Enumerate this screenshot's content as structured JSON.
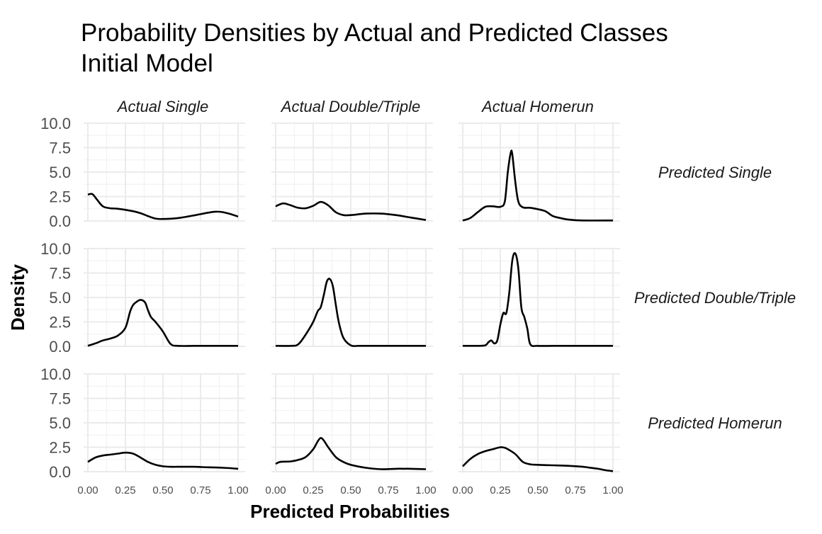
{
  "chart_data": {
    "type": "line",
    "title": "Probability Densities by Actual and Predicted Classes",
    "subtitle": "Initial Model",
    "xlabel": "Predicted Probabilities",
    "ylabel": "Density",
    "xlim": [
      0,
      1
    ],
    "ylim": [
      0,
      10
    ],
    "x_ticks": [
      "0.00",
      "0.25",
      "0.50",
      "0.75",
      "1.00"
    ],
    "y_ticks": [
      "0.0",
      "2.5",
      "5.0",
      "7.5",
      "10.0"
    ],
    "grid": true,
    "columns": [
      "Actual Single",
      "Actual Double/Triple",
      "Actual Homerun"
    ],
    "rows": [
      "Predicted Single",
      "Predicted Double/Triple",
      "Predicted Homerun"
    ],
    "panels": [
      {
        "row": "Predicted Single",
        "col": "Actual Single",
        "x": [
          0.0,
          0.03,
          0.06,
          0.1,
          0.15,
          0.2,
          0.3,
          0.35,
          0.4,
          0.45,
          0.5,
          0.6,
          0.7,
          0.8,
          0.85,
          0.9,
          0.95,
          1.0
        ],
        "y": [
          2.7,
          2.75,
          2.2,
          1.5,
          1.3,
          1.25,
          1.0,
          0.8,
          0.5,
          0.25,
          0.2,
          0.3,
          0.55,
          0.85,
          0.95,
          0.9,
          0.7,
          0.45
        ]
      },
      {
        "row": "Predicted Single",
        "col": "Actual Double/Triple",
        "x": [
          0.0,
          0.05,
          0.1,
          0.15,
          0.2,
          0.25,
          0.3,
          0.35,
          0.4,
          0.45,
          0.5,
          0.6,
          0.7,
          0.8,
          0.9,
          1.0
        ],
        "y": [
          1.5,
          1.8,
          1.6,
          1.35,
          1.3,
          1.55,
          1.95,
          1.6,
          0.9,
          0.6,
          0.6,
          0.75,
          0.75,
          0.6,
          0.35,
          0.1
        ]
      },
      {
        "row": "Predicted Single",
        "col": "Actual Homerun",
        "x": [
          0.0,
          0.05,
          0.1,
          0.15,
          0.2,
          0.25,
          0.28,
          0.3,
          0.32,
          0.33,
          0.35,
          0.37,
          0.4,
          0.45,
          0.5,
          0.55,
          0.6,
          0.65,
          0.7,
          0.8,
          1.0
        ],
        "y": [
          0.05,
          0.3,
          0.9,
          1.45,
          1.5,
          1.45,
          2.0,
          5.0,
          7.0,
          6.8,
          4.0,
          2.0,
          1.4,
          1.35,
          1.2,
          1.0,
          0.5,
          0.3,
          0.15,
          0.05,
          0.05
        ]
      },
      {
        "row": "Predicted Double/Triple",
        "col": "Actual Single",
        "x": [
          0.0,
          0.05,
          0.1,
          0.15,
          0.2,
          0.25,
          0.28,
          0.3,
          0.32,
          0.35,
          0.38,
          0.4,
          0.42,
          0.45,
          0.5,
          0.55,
          0.6,
          0.7,
          0.8,
          0.9,
          1.0
        ],
        "y": [
          0.05,
          0.3,
          0.6,
          0.8,
          1.1,
          1.9,
          3.5,
          4.2,
          4.5,
          4.75,
          4.5,
          3.7,
          3.0,
          2.5,
          1.5,
          0.25,
          0.05,
          0.05,
          0.05,
          0.05,
          0.05
        ]
      },
      {
        "row": "Predicted Double/Triple",
        "col": "Actual Double/Triple",
        "x": [
          0.0,
          0.1,
          0.15,
          0.2,
          0.25,
          0.28,
          0.3,
          0.32,
          0.34,
          0.36,
          0.38,
          0.4,
          0.42,
          0.45,
          0.5,
          0.55,
          0.6,
          0.7,
          0.8,
          0.9,
          1.0
        ],
        "y": [
          0.05,
          0.05,
          0.2,
          1.2,
          2.5,
          3.6,
          4.0,
          5.2,
          6.6,
          6.9,
          6.2,
          4.3,
          2.5,
          0.9,
          0.1,
          0.05,
          0.05,
          0.05,
          0.05,
          0.05,
          0.05
        ]
      },
      {
        "row": "Predicted Double/Triple",
        "col": "Actual Homerun",
        "x": [
          0.0,
          0.1,
          0.15,
          0.17,
          0.19,
          0.21,
          0.23,
          0.25,
          0.27,
          0.29,
          0.31,
          0.33,
          0.35,
          0.37,
          0.39,
          0.41,
          0.43,
          0.45,
          0.5,
          0.6,
          0.7,
          0.8,
          0.9,
          1.0
        ],
        "y": [
          0.05,
          0.05,
          0.1,
          0.4,
          0.6,
          0.3,
          0.6,
          2.2,
          3.4,
          3.4,
          5.5,
          8.8,
          9.5,
          8.0,
          4.0,
          3.0,
          1.8,
          0.2,
          0.05,
          0.05,
          0.05,
          0.05,
          0.05,
          0.05
        ]
      },
      {
        "row": "Predicted Homerun",
        "col": "Actual Single",
        "x": [
          0.0,
          0.05,
          0.1,
          0.15,
          0.2,
          0.25,
          0.3,
          0.35,
          0.4,
          0.45,
          0.5,
          0.55,
          0.6,
          0.7,
          0.8,
          0.9,
          1.0
        ],
        "y": [
          1.0,
          1.45,
          1.65,
          1.75,
          1.85,
          1.95,
          1.85,
          1.45,
          1.0,
          0.7,
          0.55,
          0.5,
          0.5,
          0.5,
          0.45,
          0.4,
          0.3
        ]
      },
      {
        "row": "Predicted Homerun",
        "col": "Actual Double/Triple",
        "x": [
          0.0,
          0.03,
          0.1,
          0.15,
          0.2,
          0.25,
          0.28,
          0.3,
          0.32,
          0.35,
          0.4,
          0.45,
          0.5,
          0.6,
          0.7,
          0.8,
          0.85,
          0.9,
          1.0
        ],
        "y": [
          0.8,
          1.0,
          1.05,
          1.2,
          1.5,
          2.3,
          3.1,
          3.45,
          3.2,
          2.5,
          1.5,
          1.0,
          0.7,
          0.4,
          0.25,
          0.3,
          0.3,
          0.3,
          0.25
        ]
      },
      {
        "row": "Predicted Homerun",
        "col": "Actual Homerun",
        "x": [
          0.0,
          0.05,
          0.1,
          0.15,
          0.2,
          0.25,
          0.28,
          0.3,
          0.35,
          0.4,
          0.45,
          0.5,
          0.6,
          0.7,
          0.8,
          0.85,
          0.9,
          0.95,
          1.0
        ],
        "y": [
          0.55,
          1.3,
          1.8,
          2.1,
          2.3,
          2.5,
          2.45,
          2.3,
          1.8,
          1.0,
          0.75,
          0.7,
          0.65,
          0.6,
          0.5,
          0.4,
          0.3,
          0.15,
          0.05
        ]
      }
    ]
  }
}
